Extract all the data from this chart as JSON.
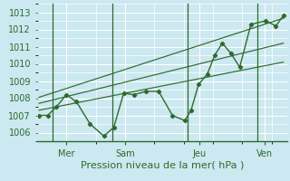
{
  "xlabel": "Pression niveau de la mer( hPa )",
  "bg_color": "#cce8f0",
  "grid_color": "#ffffff",
  "line_color": "#2d6a2d",
  "vline_color": "#2d6a2d",
  "ylim": [
    1005.5,
    1013.5
  ],
  "yticks": [
    1006,
    1007,
    1008,
    1009,
    1010,
    1011,
    1012,
    1013
  ],
  "xlim": [
    0,
    10.0
  ],
  "day_positions": [
    1.15,
    3.5,
    6.5,
    9.1
  ],
  "day_labels": [
    "Mer",
    "Sam",
    "Jeu",
    "Ven"
  ],
  "vline_x": [
    0.6,
    3.0,
    6.0,
    8.8
  ],
  "main_data_x": [
    0.05,
    0.4,
    0.75,
    1.15,
    1.55,
    2.1,
    2.65,
    3.05,
    3.45,
    3.85,
    4.35,
    4.85,
    5.4,
    5.9,
    6.15,
    6.45,
    6.8,
    7.1,
    7.4,
    7.75,
    8.1,
    8.55,
    9.15,
    9.55,
    9.85
  ],
  "main_data_y": [
    1007.0,
    1007.0,
    1007.5,
    1008.2,
    1007.8,
    1006.5,
    1005.8,
    1006.3,
    1008.3,
    1008.2,
    1008.4,
    1008.4,
    1007.0,
    1006.7,
    1007.3,
    1008.8,
    1009.4,
    1010.5,
    1011.2,
    1010.6,
    1009.8,
    1012.3,
    1012.5,
    1012.2,
    1012.8
  ],
  "trend1_x": [
    0.05,
    9.85
  ],
  "trend1_y": [
    1007.3,
    1010.1
  ],
  "trend2_x": [
    0.05,
    9.85
  ],
  "trend2_y": [
    1007.7,
    1011.2
  ],
  "trend3_x": [
    0.05,
    9.85
  ],
  "trend3_y": [
    1008.05,
    1012.65
  ]
}
